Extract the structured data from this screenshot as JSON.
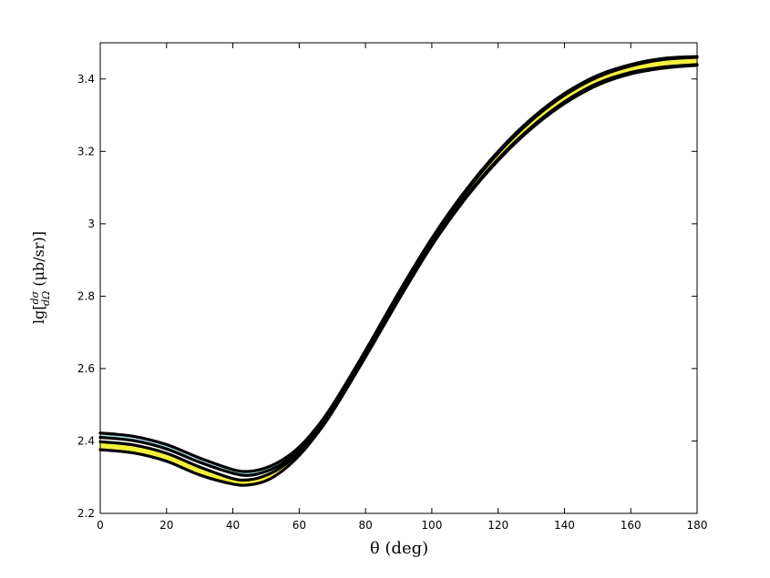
{
  "chart_data": {
    "type": "line",
    "title": "",
    "xlabel": "θ (deg)",
    "ylabel": {
      "prefix": "lg[",
      "frac_num": "dσ",
      "frac_den": "dΩ",
      "suffix": " (μb/sr)]"
    },
    "xlim": [
      0,
      180
    ],
    "ylim": [
      2.2,
      3.5
    ],
    "x_ticks": [
      0,
      20,
      40,
      60,
      80,
      100,
      120,
      140,
      160,
      180
    ],
    "y_ticks": [
      2.2,
      2.4,
      2.6,
      2.8,
      3.0,
      3.2,
      3.4
    ],
    "x_tick_labels": [
      "0",
      "20",
      "40",
      "60",
      "80",
      "100",
      "120",
      "140",
      "160",
      "180"
    ],
    "y_tick_labels": [
      "2.2",
      "2.4",
      "2.6",
      "2.8",
      "3",
      "3.2",
      "3.4"
    ],
    "grid": false,
    "legend": "none",
    "colors": {
      "band_cyan": "#a6dce0",
      "band_yellow": "#f2f03c",
      "line": "#000000"
    },
    "x": [
      0,
      10,
      20,
      30,
      40,
      45,
      50,
      55,
      60,
      65,
      70,
      80,
      90,
      100,
      110,
      120,
      130,
      140,
      150,
      160,
      170,
      180
    ],
    "series": [
      {
        "values": [
          2.422,
          2.413,
          2.39,
          2.353,
          2.321,
          2.316,
          2.326,
          2.348,
          2.383,
          2.434,
          2.498,
          2.65,
          2.81,
          2.96,
          3.09,
          3.2,
          3.29,
          3.36,
          3.41,
          3.44,
          3.457,
          3.462
        ]
      },
      {
        "values": [
          2.41,
          2.401,
          2.378,
          2.341,
          2.311,
          2.305,
          2.316,
          2.338,
          2.376,
          2.428,
          2.492,
          2.643,
          2.799,
          2.945,
          3.072,
          3.179,
          3.267,
          3.337,
          3.388,
          3.418,
          3.433,
          3.44
        ]
      },
      {
        "values": [
          2.398,
          2.389,
          2.366,
          2.328,
          2.296,
          2.293,
          2.305,
          2.33,
          2.37,
          2.423,
          2.488,
          2.64,
          2.8,
          2.955,
          3.085,
          3.195,
          3.285,
          3.355,
          3.405,
          3.436,
          3.454,
          3.46
        ]
      },
      {
        "values": [
          2.376,
          2.367,
          2.344,
          2.306,
          2.281,
          2.279,
          2.29,
          2.318,
          2.36,
          2.415,
          2.48,
          2.632,
          2.79,
          2.94,
          3.068,
          3.175,
          3.263,
          3.332,
          3.383,
          3.414,
          3.43,
          3.438
        ]
      }
    ]
  }
}
